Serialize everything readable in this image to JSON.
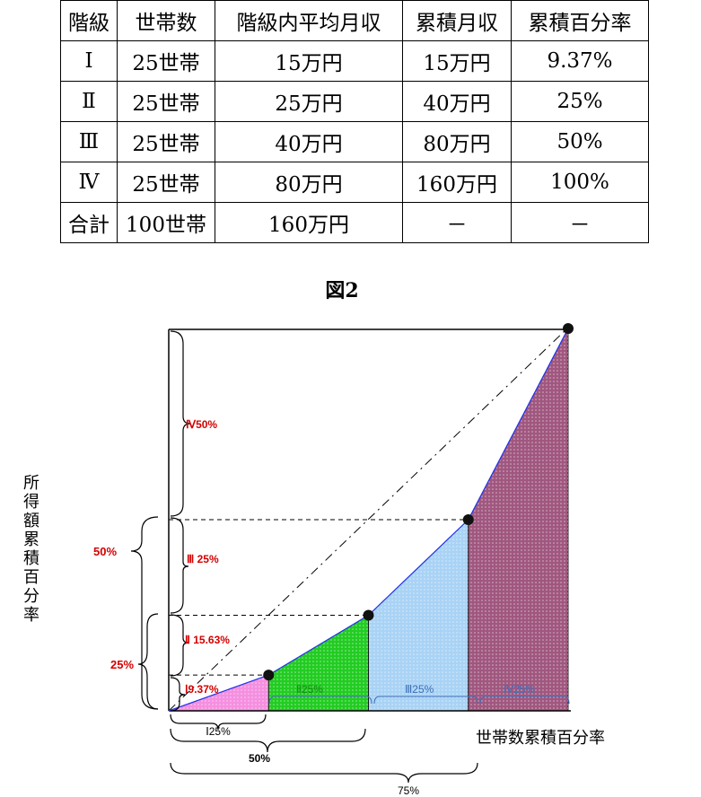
{
  "table": {
    "headers": [
      "階級",
      "世帯数",
      "階級内平均月収",
      "累積月収",
      "累積百分率"
    ],
    "rows": [
      [
        "Ⅰ",
        "25世帯",
        "15万円",
        "15万円",
        "9.37%"
      ],
      [
        "Ⅱ",
        "25世帯",
        "25万円",
        "40万円",
        "25%"
      ],
      [
        "Ⅲ",
        "25世帯",
        "40万円",
        "80万円",
        "50%"
      ],
      [
        "Ⅳ",
        "25世帯",
        "80万円",
        "160万円",
        "100%"
      ],
      [
        "合計",
        "100世帯",
        "160万円",
        "－",
        "－"
      ]
    ]
  },
  "figure": {
    "title": "図2",
    "y_axis_label": "所得額累積百分率",
    "x_axis_label": "世帯数累積百分率",
    "y_segment_labels": [
      "Ⅳ50%",
      "Ⅲ 25%",
      "Ⅱ 15.63%",
      "Ⅰ9.37%"
    ],
    "x_segment_labels": [
      "Ⅱ25%",
      "Ⅲ25%",
      "Ⅳ25%"
    ],
    "x_bottom_brace_labels": [
      "Ⅰ25%",
      "50%",
      "75%"
    ],
    "y_left_brace_labels": [
      "50%",
      "25%"
    ],
    "colors": {
      "seg1": "#f58fe0",
      "seg2": "#22cc22",
      "seg3": "#a9d3f5",
      "seg4": "#a0577f",
      "label_red": "#d40000",
      "label_blue": "#3d6fb6",
      "label_green": "#118a11"
    },
    "chart_data": {
      "type": "area",
      "x": [
        0,
        25,
        50,
        75,
        100
      ],
      "y": [
        0,
        9.37,
        25,
        50,
        100
      ],
      "xlim": [
        0,
        100
      ],
      "ylim": [
        0,
        100
      ]
    }
  }
}
